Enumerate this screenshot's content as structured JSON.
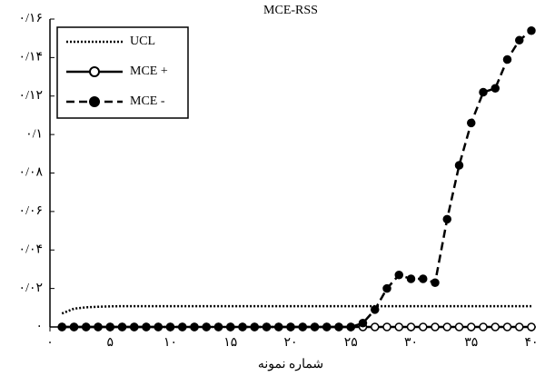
{
  "chart_data": {
    "type": "line",
    "title": "MCE-RSS",
    "x_label": "شماره نمونه",
    "x": [
      1,
      2,
      3,
      4,
      5,
      6,
      7,
      8,
      9,
      10,
      11,
      12,
      13,
      14,
      15,
      16,
      17,
      18,
      19,
      20,
      21,
      22,
      23,
      24,
      25,
      26,
      27,
      28,
      29,
      30,
      31,
      32,
      33,
      34,
      35,
      36,
      37,
      38,
      39,
      40
    ],
    "series": [
      {
        "name": "UCL",
        "color": "#000000",
        "line_style": "dotted",
        "marker": "none",
        "values": [
          0.007,
          0.0095,
          0.0102,
          0.0105,
          0.0107,
          0.0108,
          0.0108,
          0.0108,
          0.0108,
          0.0108,
          0.0108,
          0.0108,
          0.0108,
          0.0108,
          0.0108,
          0.0108,
          0.0108,
          0.0108,
          0.0108,
          0.0108,
          0.0108,
          0.0108,
          0.0108,
          0.0108,
          0.0108,
          0.0108,
          0.0108,
          0.0108,
          0.0108,
          0.0108,
          0.0108,
          0.0108,
          0.0108,
          0.0108,
          0.0108,
          0.0108,
          0.0108,
          0.0108,
          0.0108,
          0.0108
        ]
      },
      {
        "name": "MCE +",
        "color": "#000000",
        "line_style": "solid",
        "marker": "open-circle",
        "values": [
          0,
          0,
          0,
          0,
          0,
          0,
          0,
          0,
          0,
          0,
          0,
          0,
          0,
          0,
          0,
          0,
          0,
          0,
          0,
          0,
          0,
          0,
          0,
          0,
          0,
          0,
          0,
          0,
          0,
          0,
          0,
          0,
          0,
          0,
          0,
          0,
          0,
          0,
          0,
          0
        ]
      },
      {
        "name": "MCE -",
        "color": "#000000",
        "line_style": "dashed",
        "marker": "filled-circle",
        "values": [
          0,
          0,
          0,
          0,
          0,
          0,
          0,
          0,
          0,
          0,
          0,
          0,
          0,
          0,
          0,
          0,
          0,
          0,
          0,
          0,
          0,
          0,
          0,
          0,
          0,
          0.002,
          0.009,
          0.02,
          0.027,
          0.025,
          0.025,
          0.023,
          0.056,
          0.084,
          0.106,
          0.122,
          0.124,
          0.139,
          0.149,
          0.154
        ]
      }
    ],
    "xlim": [
      0,
      40
    ],
    "xticks": [
      {
        "value": 0,
        "label": "۰"
      },
      {
        "value": 5,
        "label": "۵"
      },
      {
        "value": 10,
        "label": "۱۰"
      },
      {
        "value": 15,
        "label": "۱۵"
      },
      {
        "value": 20,
        "label": "۲۰"
      },
      {
        "value": 25,
        "label": "۲۵"
      },
      {
        "value": 30,
        "label": "۳۰"
      },
      {
        "value": 35,
        "label": "۳۵"
      },
      {
        "value": 40,
        "label": "۴۰"
      }
    ],
    "ylim": [
      0,
      0.16
    ],
    "yticks": [
      {
        "value": 0,
        "label": "۰"
      },
      {
        "value": 0.02,
        "label": "۰/۰۲"
      },
      {
        "value": 0.04,
        "label": "۰/۰۴"
      },
      {
        "value": 0.06,
        "label": "۰/۰۶"
      },
      {
        "value": 0.08,
        "label": "۰/۰۸"
      },
      {
        "value": 0.1,
        "label": "۰/۱"
      },
      {
        "value": 0.12,
        "label": "۰/۱۲"
      },
      {
        "value": 0.14,
        "label": "۰/۱۴"
      },
      {
        "value": 0.16,
        "label": "۰/۱۶"
      }
    ],
    "legend": "upper-left"
  }
}
